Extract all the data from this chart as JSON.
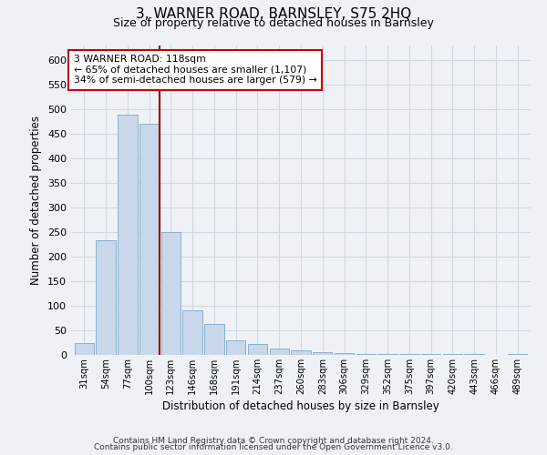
{
  "title": "3, WARNER ROAD, BARNSLEY, S75 2HQ",
  "subtitle": "Size of property relative to detached houses in Barnsley",
  "xlabel": "Distribution of detached houses by size in Barnsley",
  "ylabel": "Number of detached properties",
  "bar_color": "#c8d8ea",
  "bar_edge_color": "#8ab0cc",
  "categories": [
    "31sqm",
    "54sqm",
    "77sqm",
    "100sqm",
    "123sqm",
    "146sqm",
    "168sqm",
    "191sqm",
    "214sqm",
    "237sqm",
    "260sqm",
    "283sqm",
    "306sqm",
    "329sqm",
    "352sqm",
    "375sqm",
    "397sqm",
    "420sqm",
    "443sqm",
    "466sqm",
    "489sqm"
  ],
  "values": [
    25,
    233,
    490,
    470,
    250,
    90,
    63,
    30,
    22,
    13,
    10,
    5,
    3,
    1,
    1,
    1,
    1,
    1,
    1,
    0,
    2
  ],
  "ylim": [
    0,
    630
  ],
  "yticks": [
    0,
    50,
    100,
    150,
    200,
    250,
    300,
    350,
    400,
    450,
    500,
    550,
    600
  ],
  "vline_index": 3.5,
  "vline_color": "#990000",
  "annotation_title": "3 WARNER ROAD: 118sqm",
  "annotation_line1": "← 65% of detached houses are smaller (1,107)",
  "annotation_line2": "34% of semi-detached houses are larger (579) →",
  "annotation_box_color": "#ffffff",
  "annotation_box_edge": "#cc0000",
  "footer1": "Contains HM Land Registry data © Crown copyright and database right 2024.",
  "footer2": "Contains public sector information licensed under the Open Government Licence v3.0.",
  "grid_color": "#d0d8e4",
  "bg_color": "#eef2f7"
}
